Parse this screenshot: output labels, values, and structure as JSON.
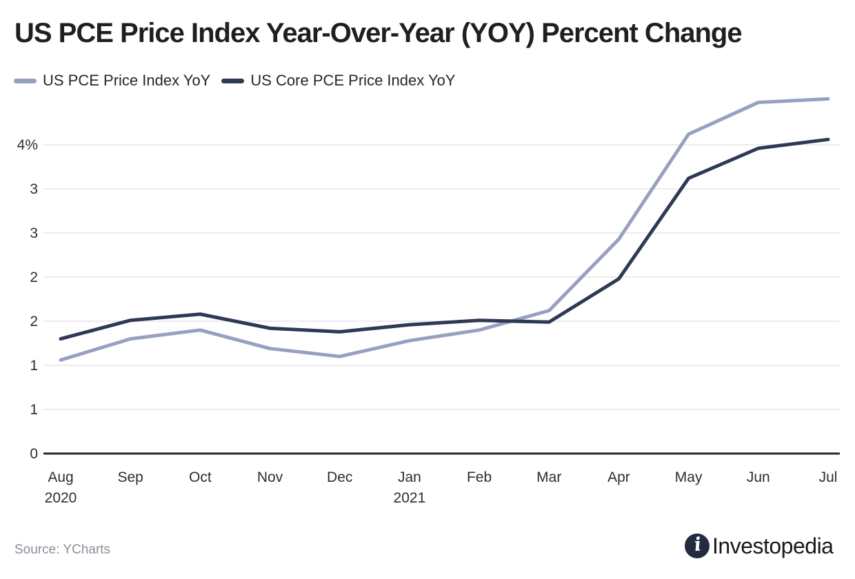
{
  "title": "US PCE Price Index Year-Over-Year (YOY) Percent Change",
  "legend": {
    "items": [
      {
        "label": "US PCE Price Index YoY",
        "color": "#98a0c1"
      },
      {
        "label": "US Core PCE Price Index YoY",
        "color": "#2e3954"
      }
    ]
  },
  "footer": {
    "source": "Source: YCharts",
    "brand": "Investopedia",
    "logo_icon": "investopedia-i-mark",
    "logo_color": "#232b41"
  },
  "chart_data": {
    "type": "line",
    "title": "US PCE Price Index Year-Over-Year (YOY) Percent Change",
    "x_categories": [
      {
        "month": "Aug",
        "year": "2020"
      },
      {
        "month": "Sep"
      },
      {
        "month": "Oct"
      },
      {
        "month": "Nov"
      },
      {
        "month": "Dec"
      },
      {
        "month": "Jan",
        "year": "2021"
      },
      {
        "month": "Feb"
      },
      {
        "month": "Mar"
      },
      {
        "month": "Apr"
      },
      {
        "month": "May"
      },
      {
        "month": "Jun"
      },
      {
        "month": "Jul"
      }
    ],
    "series": [
      {
        "name": "US PCE Price Index YoY",
        "color": "#98a0c1",
        "values": [
          1.06,
          1.3,
          1.4,
          1.19,
          1.1,
          1.28,
          1.4,
          1.62,
          2.43,
          3.62,
          3.98,
          4.02
        ]
      },
      {
        "name": "US Core PCE Price Index YoY",
        "color": "#2e3954",
        "values": [
          1.3,
          1.51,
          1.58,
          1.42,
          1.38,
          1.46,
          1.51,
          1.49,
          1.98,
          3.12,
          3.46,
          3.56
        ]
      }
    ],
    "xlabel": "",
    "ylabel": "",
    "unit": "percent",
    "ylim": [
      0,
      4.05
    ],
    "yticks": [
      {
        "value": 0.0,
        "label": "0"
      },
      {
        "value": 0.5,
        "label": "1"
      },
      {
        "value": 1.0,
        "label": "1"
      },
      {
        "value": 1.5,
        "label": "2"
      },
      {
        "value": 2.0,
        "label": "2"
      },
      {
        "value": 2.5,
        "label": "3"
      },
      {
        "value": 3.0,
        "label": "3"
      },
      {
        "value": 3.5,
        "label": "4%"
      }
    ],
    "grid": "horizontal",
    "legend_position": "top-left",
    "colors": {
      "gridline": "#ececee",
      "axis": "#2b2b2b",
      "tick_label": "#2d2d2d"
    }
  }
}
